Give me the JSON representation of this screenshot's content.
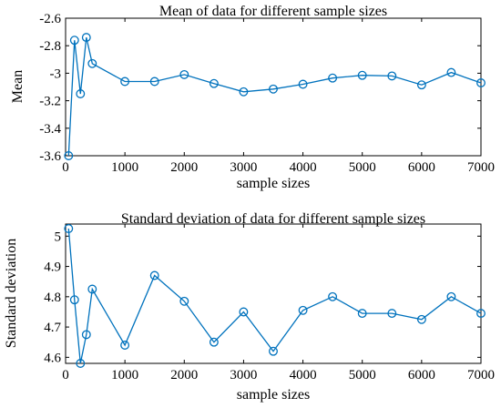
{
  "chart_data": [
    {
      "type": "line",
      "title": "Mean of data for different sample sizes",
      "xlabel": "sample sizes",
      "ylabel": "Mean",
      "xlim": [
        0,
        7000
      ],
      "ylim": [
        -3.6,
        -2.6
      ],
      "xticks": [
        0,
        1000,
        2000,
        3000,
        4000,
        5000,
        6000,
        7000
      ],
      "xtick_labels": [
        "0",
        "1000",
        "2000",
        "3000",
        "4000",
        "5000",
        "6000",
        "7000"
      ],
      "yticks": [
        -3.6,
        -3.4,
        -3.2,
        -3.0,
        -2.8,
        -2.6
      ],
      "ytick_labels": [
        "-3.6",
        "-3.4",
        "-3.2",
        "-3",
        "-2.8",
        "-2.6"
      ],
      "grid": false,
      "color": "#0072bd",
      "marker": "circle",
      "x": [
        50,
        150,
        250,
        350,
        450,
        1000,
        1500,
        2000,
        2500,
        3000,
        3500,
        4000,
        4500,
        5000,
        5500,
        6000,
        6500,
        7000
      ],
      "values": [
        -3.6,
        -2.76,
        -3.15,
        -2.74,
        -2.93,
        -3.06,
        -3.06,
        -3.01,
        -3.075,
        -3.135,
        -3.115,
        -3.08,
        -3.035,
        -3.015,
        -3.02,
        -3.085,
        -2.995,
        -3.07
      ]
    },
    {
      "type": "line",
      "title": "Standard deviation of data for different sample sizes",
      "xlabel": "sample sizes",
      "ylabel": "Standard deviation",
      "xlim": [
        0,
        7000
      ],
      "ylim": [
        4.58,
        5.04
      ],
      "xticks": [
        0,
        1000,
        2000,
        3000,
        4000,
        5000,
        6000,
        7000
      ],
      "xtick_labels": [
        "0",
        "1000",
        "2000",
        "3000",
        "4000",
        "5000",
        "6000",
        "7000"
      ],
      "yticks": [
        4.6,
        4.7,
        4.8,
        4.9,
        5.0
      ],
      "ytick_labels": [
        "4.6",
        "4.7",
        "4.8",
        "4.9",
        "5"
      ],
      "grid": false,
      "color": "#0072bd",
      "marker": "circle",
      "x": [
        50,
        150,
        250,
        350,
        450,
        1000,
        1500,
        2000,
        2500,
        3000,
        3500,
        4000,
        4500,
        5000,
        5500,
        6000,
        6500,
        7000
      ],
      "values": [
        5.025,
        4.79,
        4.58,
        4.675,
        4.825,
        4.64,
        4.87,
        4.785,
        4.65,
        4.75,
        4.62,
        4.755,
        4.8,
        4.745,
        4.745,
        4.725,
        4.8,
        4.745
      ]
    }
  ]
}
